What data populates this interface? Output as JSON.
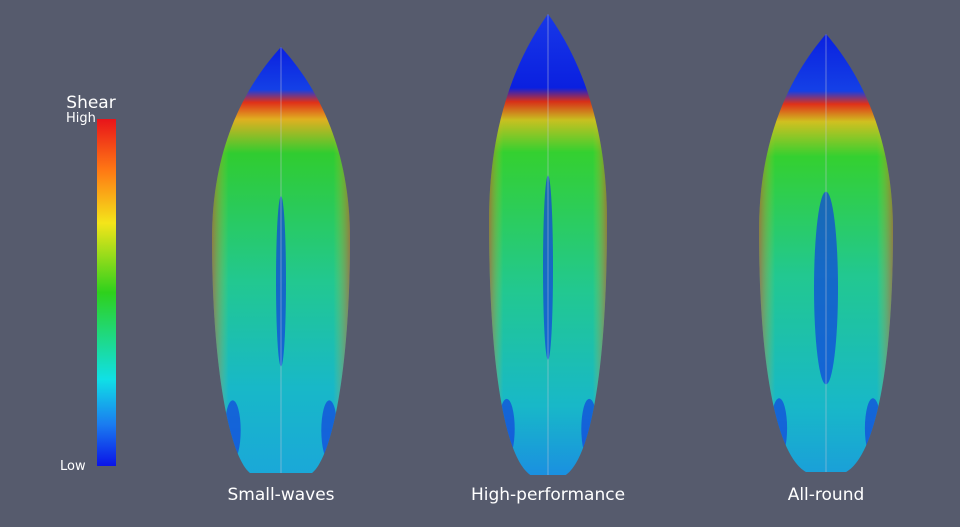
{
  "legend": {
    "title": "Shear",
    "high": "High",
    "low": "Low"
  },
  "boards": [
    {
      "label": "Small-waves"
    },
    {
      "label": "High-performance"
    },
    {
      "label": "All-round"
    }
  ]
}
